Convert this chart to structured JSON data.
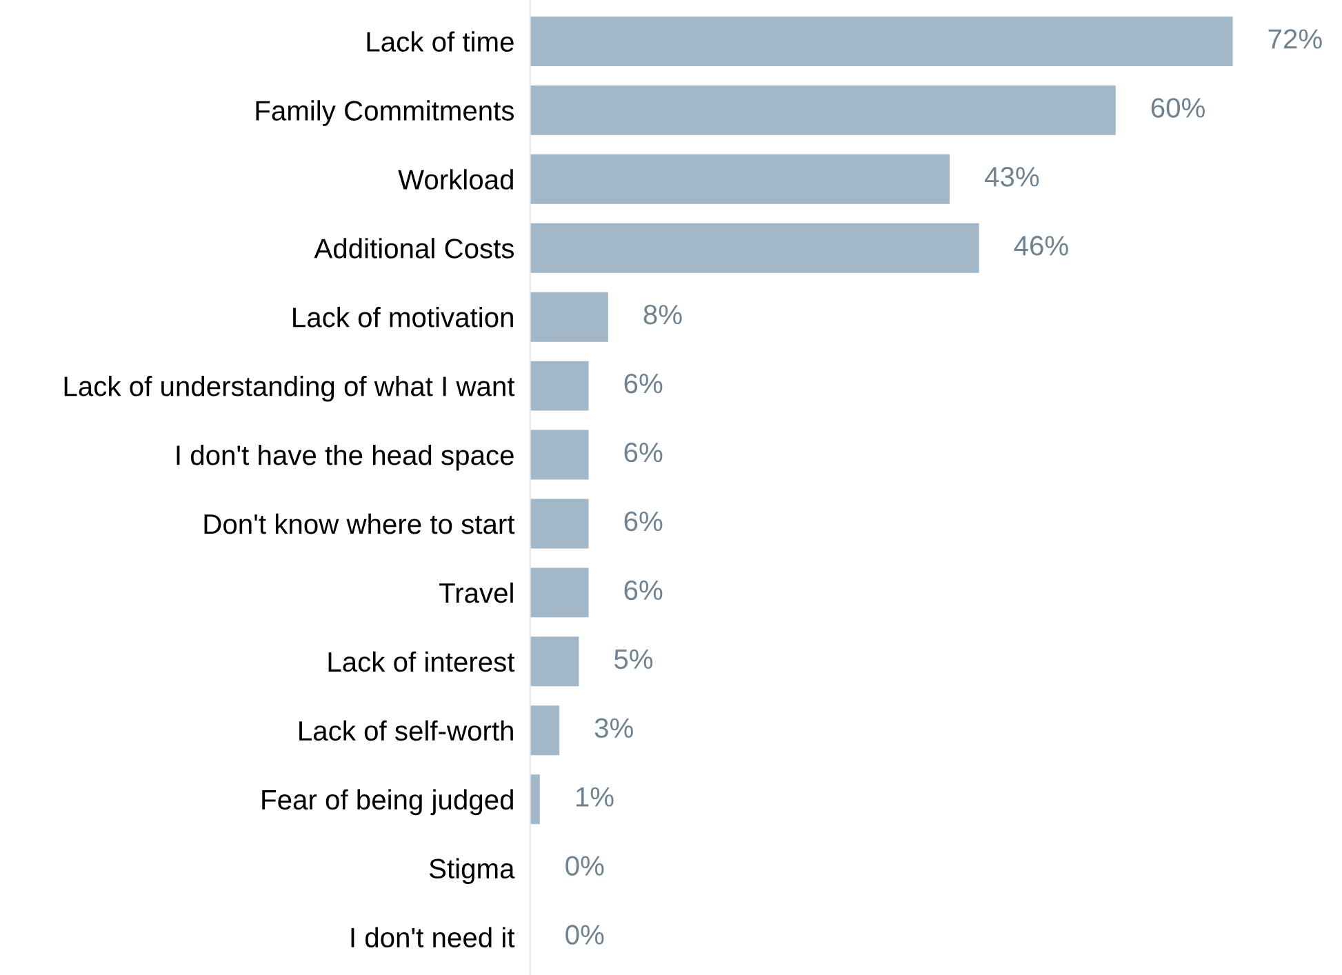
{
  "chart_data": {
    "type": "bar",
    "orientation": "horizontal",
    "categories": [
      "Lack of time",
      "Family Commitments",
      "Workload",
      "Additional Costs",
      "Lack of motivation",
      "Lack of understanding of what I want",
      "I don't have the head space",
      "Don't know where to start",
      "Travel",
      "Lack of interest",
      "Lack of self-worth",
      "Fear of being judged",
      "Stigma",
      "I don't need it"
    ],
    "values": [
      72,
      60,
      43,
      46,
      8,
      6,
      6,
      6,
      6,
      5,
      3,
      1,
      0,
      0
    ],
    "value_labels": [
      "72%",
      "60%",
      "43%",
      "46%",
      "8%",
      "6%",
      "6%",
      "6%",
      "6%",
      "5%",
      "3%",
      "1%",
      "0%",
      "0%"
    ],
    "color": "#a2b8c9",
    "grid": false,
    "legend": false
  }
}
